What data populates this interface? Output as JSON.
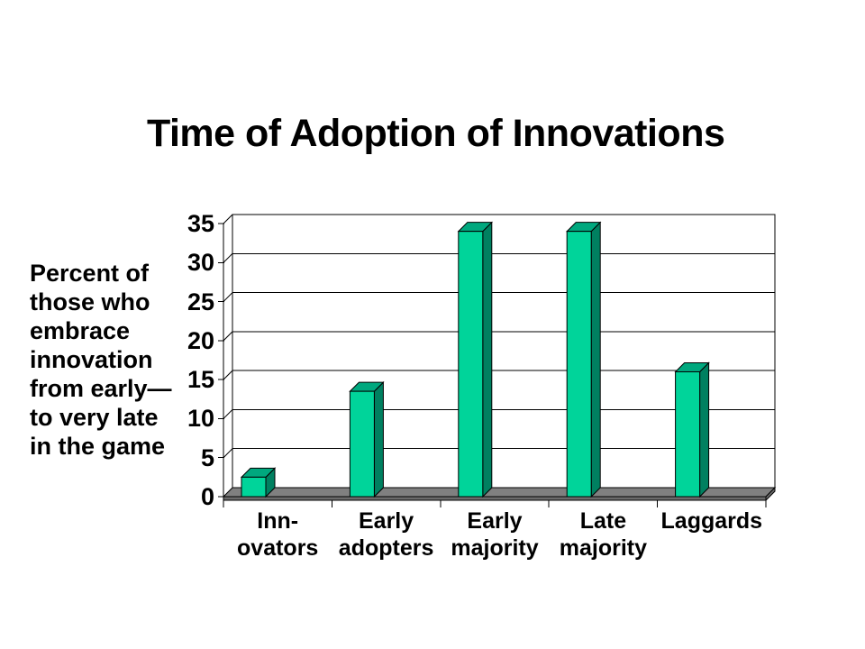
{
  "slide": {
    "title": "Time of Adoption of Innovations",
    "side_note_lines": [
      "Percent of",
      "those who",
      "embrace",
      "innovation",
      "from early—",
      "to very late",
      "in the game"
    ]
  },
  "chart_data": {
    "type": "bar",
    "style": "3d-bar",
    "title": "Time of Adoption of Innovations",
    "ylabel": "Percent of those who embrace innovation from early—to very late in the game",
    "xlabel": "",
    "categories": [
      [
        "Inn-",
        "ovators"
      ],
      [
        "Early",
        "adopters"
      ],
      [
        "Early",
        "majority"
      ],
      [
        "Late",
        "majority"
      ],
      [
        "Laggards"
      ]
    ],
    "values": [
      2.5,
      13.5,
      34,
      34,
      16
    ],
    "yticks": [
      0,
      5,
      10,
      15,
      20,
      25,
      30,
      35
    ],
    "ylim": [
      0,
      35
    ],
    "grid": true,
    "legend": false,
    "colors": {
      "bar_front": "#00D49A",
      "bar_top": "#00A87E",
      "bar_side": "#008060",
      "floor": "#808080",
      "floor_edge": "#6B6B6B",
      "outline": "#000000",
      "background": "#FFFFFF",
      "text": "#000000"
    }
  }
}
